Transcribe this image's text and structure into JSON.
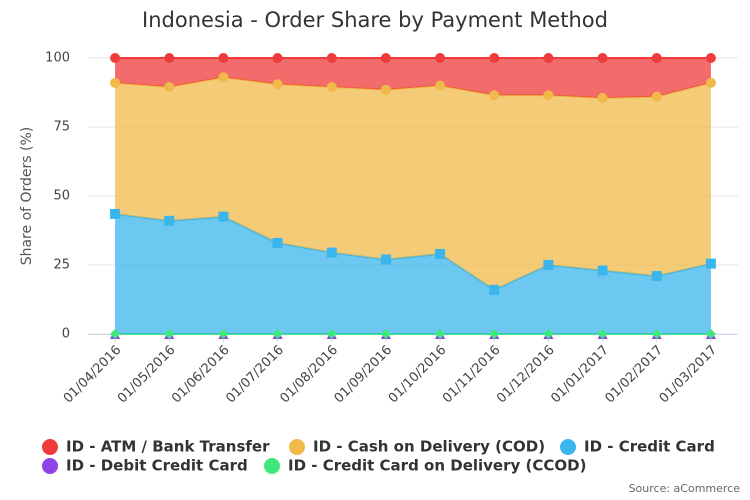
{
  "chart_data": {
    "type": "stacked-area",
    "title": "Indonesia - Order Share by Payment Method",
    "y_label": "Share of Orders (%)",
    "source": "Source: aCommerce",
    "categories": [
      "01/04/2016",
      "01/05/2016",
      "01/06/2016",
      "01/07/2016",
      "01/08/2016",
      "01/09/2016",
      "01/10/2016",
      "01/11/2016",
      "01/12/2016",
      "01/01/2017",
      "01/02/2017",
      "01/03/2017"
    ],
    "ylim": [
      0,
      100
    ],
    "yticks": [
      0,
      25,
      50,
      75,
      100
    ],
    "series": [
      {
        "name": "ID - Debit Credit Card",
        "color": "#8e44e6",
        "values": [
          0,
          0,
          0,
          0,
          0,
          0,
          0,
          0,
          0,
          0,
          0,
          0
        ]
      },
      {
        "name": "ID - Credit Card on Delivery (CCOD)",
        "color": "#3ee87a",
        "values": [
          0,
          0,
          0,
          0,
          0,
          0,
          0,
          0,
          0,
          0,
          0,
          0
        ]
      },
      {
        "name": "ID - Credit Card",
        "color": "#3bb6ec",
        "values": [
          43.5,
          41,
          42.5,
          33,
          29.5,
          27,
          29,
          16,
          25,
          23,
          21,
          25.5
        ]
      },
      {
        "name": "ID - Cash on Delivery (COD)",
        "color": "#f0b949",
        "values": [
          47.5,
          48.5,
          50.5,
          57.5,
          60,
          61.5,
          61,
          70.5,
          61.5,
          62.5,
          65,
          65.5
        ]
      },
      {
        "name": "ID - ATM / Bank Transfer",
        "color": "#ef3b3b",
        "values": [
          9,
          10.5,
          7,
          9.5,
          10.5,
          11.5,
          10,
          13.5,
          13.5,
          14.5,
          14,
          9
        ]
      }
    ]
  }
}
